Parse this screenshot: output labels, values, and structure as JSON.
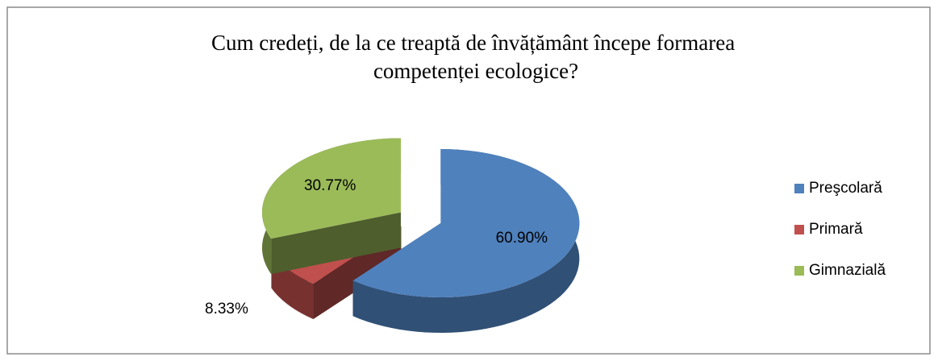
{
  "chart_data": {
    "type": "pie",
    "title": "Cum credeți, de la ce treaptă de învățământ începe formarea competenței ecologice?",
    "categories": [
      "Preşcolară",
      "Primară",
      "Gimnazială"
    ],
    "values": [
      60.9,
      8.33,
      30.77
    ],
    "value_labels": [
      "60.90%",
      "8.33%",
      "30.77%"
    ],
    "colors": [
      "#4f81bd",
      "#c0504d",
      "#9bbb59"
    ],
    "legend": "right"
  }
}
